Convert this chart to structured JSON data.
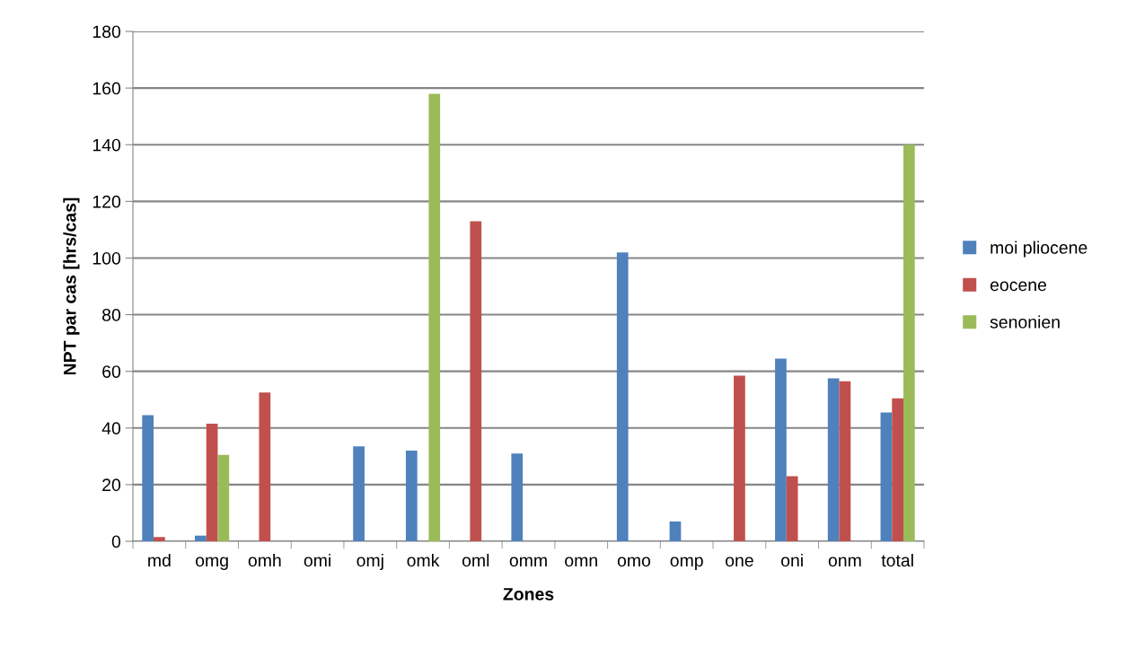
{
  "chart_data": {
    "type": "bar",
    "xlabel": "Zones",
    "ylabel": "NPT par cas [hrs/cas]",
    "categories": [
      "md",
      "omg",
      "omh",
      "omi",
      "omj",
      "omk",
      "oml",
      "omm",
      "omn",
      "omo",
      "omp",
      "one",
      "oni",
      "onm",
      "total"
    ],
    "series": [
      {
        "name": "moi pliocene",
        "color": "#4f81bd",
        "values": [
          44.5,
          2,
          0,
          0,
          33.5,
          32,
          0,
          31,
          0,
          102,
          7,
          0,
          64.5,
          57.5,
          45.5
        ]
      },
      {
        "name": "eocene",
        "color": "#c0504d",
        "values": [
          1.5,
          41.5,
          52.5,
          0,
          0,
          0,
          113,
          0,
          0,
          0,
          0,
          58.5,
          23,
          56.5,
          50.5
        ]
      },
      {
        "name": "senonien",
        "color": "#9bbb59",
        "values": [
          0,
          30.5,
          0,
          0,
          0,
          158,
          0,
          0,
          0,
          0,
          0,
          0,
          0,
          0,
          140
        ]
      }
    ],
    "ylim": [
      0,
      180
    ],
    "yticks": [
      0,
      20,
      40,
      60,
      80,
      100,
      120,
      140,
      160,
      180
    ],
    "grid": "y",
    "legend": "right"
  }
}
